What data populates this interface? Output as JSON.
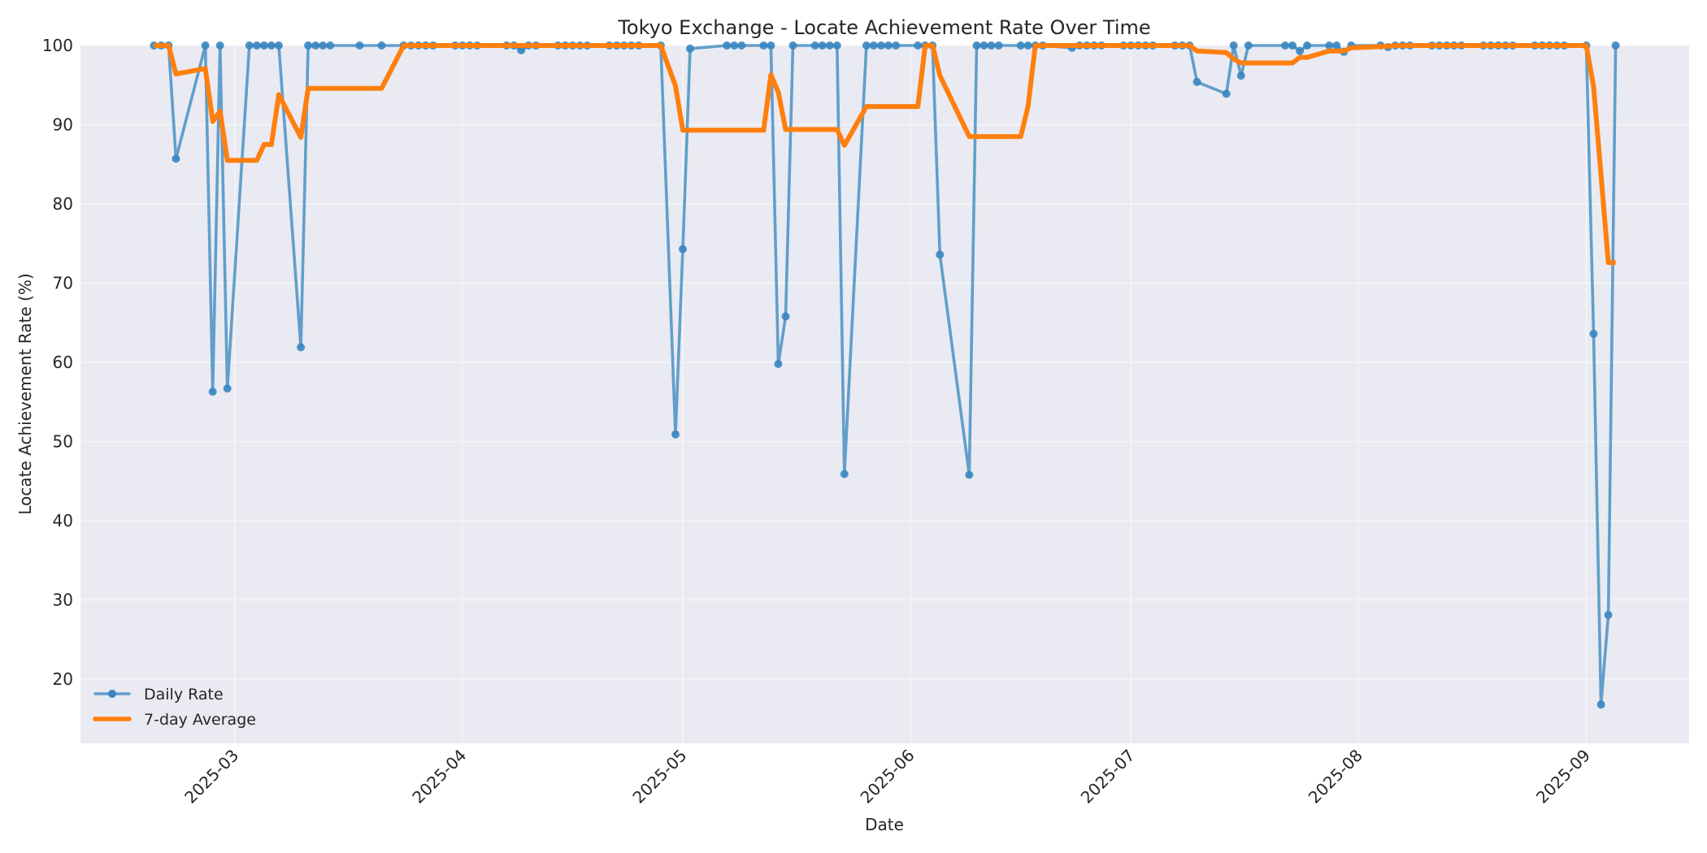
{
  "chart_data": {
    "type": "line",
    "title": "Tokyo Exchange - Locate Achievement Rate Over Time",
    "xlabel": "Date",
    "ylabel": "Locate Achievement Rate (%)",
    "ylim": [
      11.9,
      100
    ],
    "xlim": [
      "2025-02-08",
      "2025-09-15"
    ],
    "grid": true,
    "legend_position": "lower left",
    "x_ticks": [
      "2025-03",
      "2025-04",
      "2025-05",
      "2025-06",
      "2025-07",
      "2025-08",
      "2025-09"
    ],
    "x_tick_dates": [
      "2025-03-01",
      "2025-04-01",
      "2025-05-01",
      "2025-06-01",
      "2025-07-01",
      "2025-08-01",
      "2025-09-01"
    ],
    "y_ticks": [
      20,
      30,
      40,
      50,
      60,
      70,
      80,
      90,
      100
    ],
    "colors": {
      "daily": "#4a90c4",
      "avg": "#ff7f0e",
      "plot_bg": "#eaeaf2",
      "grid": "#f7f7fa"
    },
    "series": [
      {
        "name": "Daily Rate",
        "style": "line-marker",
        "points": [
          [
            "2025-02-18",
            100
          ],
          [
            "2025-02-19",
            100
          ],
          [
            "2025-02-20",
            100
          ],
          [
            "2025-02-21",
            85.7
          ],
          [
            "2025-02-25",
            100
          ],
          [
            "2025-02-26",
            56.3
          ],
          [
            "2025-02-27",
            100
          ],
          [
            "2025-02-28",
            56.7
          ],
          [
            "2025-03-03",
            100
          ],
          [
            "2025-03-04",
            100
          ],
          [
            "2025-03-05",
            100
          ],
          [
            "2025-03-06",
            100
          ],
          [
            "2025-03-07",
            100
          ],
          [
            "2025-03-10",
            61.9
          ],
          [
            "2025-03-11",
            100
          ],
          [
            "2025-03-12",
            100
          ],
          [
            "2025-03-13",
            100
          ],
          [
            "2025-03-14",
            100
          ],
          [
            "2025-03-18",
            100
          ],
          [
            "2025-03-21",
            100
          ],
          [
            "2025-03-24",
            100
          ],
          [
            "2025-03-25",
            100
          ],
          [
            "2025-03-26",
            100
          ],
          [
            "2025-03-27",
            100
          ],
          [
            "2025-03-28",
            100
          ],
          [
            "2025-03-31",
            100
          ],
          [
            "2025-04-01",
            100
          ],
          [
            "2025-04-02",
            100
          ],
          [
            "2025-04-03",
            100
          ],
          [
            "2025-04-07",
            100
          ],
          [
            "2025-04-08",
            100
          ],
          [
            "2025-04-09",
            99.4
          ],
          [
            "2025-04-10",
            100
          ],
          [
            "2025-04-11",
            100
          ],
          [
            "2025-04-14",
            100
          ],
          [
            "2025-04-15",
            100
          ],
          [
            "2025-04-16",
            100
          ],
          [
            "2025-04-17",
            100
          ],
          [
            "2025-04-18",
            100
          ],
          [
            "2025-04-21",
            100
          ],
          [
            "2025-04-22",
            100
          ],
          [
            "2025-04-23",
            100
          ],
          [
            "2025-04-24",
            100
          ],
          [
            "2025-04-25",
            100
          ],
          [
            "2025-04-28",
            100
          ],
          [
            "2025-04-30",
            50.9
          ],
          [
            "2025-05-01",
            74.3
          ],
          [
            "2025-05-02",
            99.6
          ],
          [
            "2025-05-07",
            100
          ],
          [
            "2025-05-08",
            100
          ],
          [
            "2025-05-09",
            100
          ],
          [
            "2025-05-12",
            100
          ],
          [
            "2025-05-13",
            100
          ],
          [
            "2025-05-14",
            59.8
          ],
          [
            "2025-05-15",
            65.8
          ],
          [
            "2025-05-16",
            100
          ],
          [
            "2025-05-19",
            100
          ],
          [
            "2025-05-20",
            100
          ],
          [
            "2025-05-21",
            100
          ],
          [
            "2025-05-22",
            100
          ],
          [
            "2025-05-23",
            45.9
          ],
          [
            "2025-05-26",
            100
          ],
          [
            "2025-05-27",
            100
          ],
          [
            "2025-05-28",
            100
          ],
          [
            "2025-05-29",
            100
          ],
          [
            "2025-05-30",
            100
          ],
          [
            "2025-06-02",
            100
          ],
          [
            "2025-06-03",
            100
          ],
          [
            "2025-06-04",
            100
          ],
          [
            "2025-06-05",
            73.6
          ],
          [
            "2025-06-09",
            45.8
          ],
          [
            "2025-06-10",
            100
          ],
          [
            "2025-06-11",
            100
          ],
          [
            "2025-06-12",
            100
          ],
          [
            "2025-06-13",
            100
          ],
          [
            "2025-06-16",
            100
          ],
          [
            "2025-06-17",
            100
          ],
          [
            "2025-06-18",
            100
          ],
          [
            "2025-06-19",
            100
          ],
          [
            "2025-06-23",
            99.7
          ],
          [
            "2025-06-24",
            100
          ],
          [
            "2025-06-25",
            100
          ],
          [
            "2025-06-26",
            100
          ],
          [
            "2025-06-27",
            100
          ],
          [
            "2025-06-30",
            100
          ],
          [
            "2025-07-01",
            100
          ],
          [
            "2025-07-02",
            100
          ],
          [
            "2025-07-03",
            100
          ],
          [
            "2025-07-04",
            100
          ],
          [
            "2025-07-07",
            100
          ],
          [
            "2025-07-08",
            100
          ],
          [
            "2025-07-09",
            100
          ],
          [
            "2025-07-10",
            95.4
          ],
          [
            "2025-07-14",
            93.9
          ],
          [
            "2025-07-15",
            100
          ],
          [
            "2025-07-16",
            96.2
          ],
          [
            "2025-07-17",
            100
          ],
          [
            "2025-07-22",
            100
          ],
          [
            "2025-07-23",
            100
          ],
          [
            "2025-07-24",
            99.3
          ],
          [
            "2025-07-25",
            100
          ],
          [
            "2025-07-28",
            100
          ],
          [
            "2025-07-29",
            100
          ],
          [
            "2025-07-30",
            99.2
          ],
          [
            "2025-07-31",
            100
          ],
          [
            "2025-08-04",
            100
          ],
          [
            "2025-08-05",
            99.8
          ],
          [
            "2025-08-06",
            100
          ],
          [
            "2025-08-07",
            100
          ],
          [
            "2025-08-08",
            100
          ],
          [
            "2025-08-11",
            100
          ],
          [
            "2025-08-12",
            100
          ],
          [
            "2025-08-13",
            100
          ],
          [
            "2025-08-14",
            100
          ],
          [
            "2025-08-15",
            100
          ],
          [
            "2025-08-18",
            100
          ],
          [
            "2025-08-19",
            100
          ],
          [
            "2025-08-20",
            100
          ],
          [
            "2025-08-21",
            100
          ],
          [
            "2025-08-22",
            100
          ],
          [
            "2025-08-25",
            100
          ],
          [
            "2025-08-26",
            100
          ],
          [
            "2025-08-27",
            100
          ],
          [
            "2025-08-28",
            100
          ],
          [
            "2025-08-29",
            100
          ],
          [
            "2025-09-01",
            100
          ],
          [
            "2025-09-02",
            63.6
          ],
          [
            "2025-09-03",
            16.8
          ],
          [
            "2025-09-04",
            28.1
          ],
          [
            "2025-09-05",
            100
          ]
        ]
      },
      {
        "name": "7-day Average",
        "style": "line",
        "points": [
          [
            "2025-02-18",
            100
          ],
          [
            "2025-02-20",
            100
          ],
          [
            "2025-02-21",
            96.4
          ],
          [
            "2025-02-25",
            97.1
          ],
          [
            "2025-02-26",
            90.4
          ],
          [
            "2025-02-27",
            91.7
          ],
          [
            "2025-02-28",
            85.5
          ],
          [
            "2025-03-03",
            85.5
          ],
          [
            "2025-03-04",
            85.5
          ],
          [
            "2025-03-05",
            87.5
          ],
          [
            "2025-03-06",
            87.5
          ],
          [
            "2025-03-07",
            93.8
          ],
          [
            "2025-03-10",
            88.4
          ],
          [
            "2025-03-11",
            94.6
          ],
          [
            "2025-03-18",
            94.6
          ],
          [
            "2025-03-21",
            94.6
          ],
          [
            "2025-03-24",
            100
          ],
          [
            "2025-04-28",
            100
          ],
          [
            "2025-04-30",
            94.9
          ],
          [
            "2025-05-01",
            89.3
          ],
          [
            "2025-05-12",
            89.3
          ],
          [
            "2025-05-13",
            96.3
          ],
          [
            "2025-05-14",
            94.1
          ],
          [
            "2025-05-15",
            89.4
          ],
          [
            "2025-05-22",
            89.4
          ],
          [
            "2025-05-23",
            87.4
          ],
          [
            "2025-05-26",
            92.3
          ],
          [
            "2025-06-02",
            92.3
          ],
          [
            "2025-06-03",
            100
          ],
          [
            "2025-06-04",
            100
          ],
          [
            "2025-06-05",
            96.2
          ],
          [
            "2025-06-09",
            88.5
          ],
          [
            "2025-06-16",
            88.5
          ],
          [
            "2025-06-17",
            92.3
          ],
          [
            "2025-06-18",
            100
          ],
          [
            "2025-07-09",
            100
          ],
          [
            "2025-07-10",
            99.3
          ],
          [
            "2025-07-14",
            99.1
          ],
          [
            "2025-07-15",
            98.3
          ],
          [
            "2025-07-16",
            97.8
          ],
          [
            "2025-07-17",
            97.8
          ],
          [
            "2025-07-23",
            97.8
          ],
          [
            "2025-07-24",
            98.5
          ],
          [
            "2025-07-25",
            98.5
          ],
          [
            "2025-07-28",
            99.3
          ],
          [
            "2025-07-30",
            99.3
          ],
          [
            "2025-07-31",
            99.7
          ],
          [
            "2025-08-05",
            99.9
          ],
          [
            "2025-08-06",
            100
          ],
          [
            "2025-09-01",
            100
          ],
          [
            "2025-09-02",
            94.8
          ],
          [
            "2025-09-04",
            72.6
          ],
          [
            "2025-09-05",
            72.6
          ]
        ]
      }
    ]
  },
  "legend": {
    "items": [
      {
        "label": "Daily Rate",
        "color": "#4a90c4",
        "marker": "circle"
      },
      {
        "label": "7-day Average",
        "color": "#ff7f0e",
        "marker": "none"
      }
    ]
  }
}
